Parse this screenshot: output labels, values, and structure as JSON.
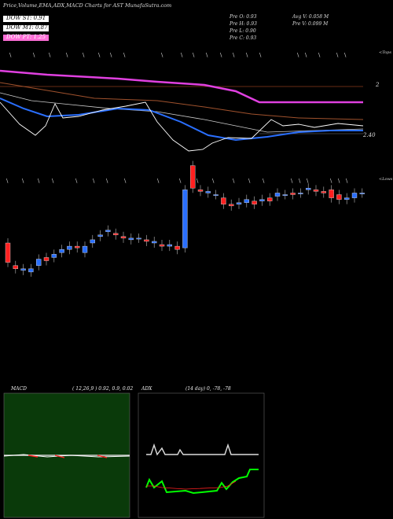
{
  "header": {
    "title": "Price,Volume,EMA,ADX,MACD Charts for AST MunafaSutra.com",
    "legend": [
      {
        "label": "DOW ST: 0.91",
        "color": "#ff6fd8"
      },
      {
        "label": "DOW MT: 0.87",
        "color": "#ff6fd8"
      },
      {
        "label": "DOW PT: 1.25",
        "color": "#ff6fd8"
      }
    ],
    "stats": {
      "prev_open": "Pre   O: 0.93",
      "prev_high": "Pre   H: 0.93",
      "prev_low": "Pre   L: 0.90",
      "prev_close": "Pre   C: 0.93",
      "avg_volume": "Avg V: 0.058 M",
      "prev_volume": "Pre   V: 0.099 M"
    }
  },
  "price_panel": {
    "label_top": "<Tops",
    "label_bottom": "<Lows",
    "axis_label_2": "2",
    "axis_label_240": "2.40"
  },
  "macd_panel": {
    "label": "MACD",
    "params": "( 12,26,9 ) 0.92, 0.9, 0.02"
  },
  "adx_panel": {
    "label": "ADX",
    "params": "(14  day) 0, -78, -78"
  },
  "colors": {
    "ema_magenta": "#e040e0",
    "ema_brown": "#a0522d",
    "ema_blue": "#2a6fff",
    "candle_red": "#ff2020",
    "candle_blue": "#2a6fff",
    "macd_bg": "#0a3a0a",
    "adx_green": "#00ff00"
  },
  "chart_data": {
    "type": "candlestick",
    "series": [
      {
        "name": "DOW ST",
        "values": [
          0.91
        ]
      },
      {
        "name": "DOW MT",
        "values": [
          0.87
        ]
      },
      {
        "name": "DOW PT",
        "values": [
          1.25
        ]
      }
    ],
    "last_session": {
      "open": 0.93,
      "high": 0.93,
      "low": 0.9,
      "close": 0.93,
      "volume_m": 0.099,
      "avg_volume_m": 0.058
    },
    "macd": {
      "fast": 12,
      "slow": 26,
      "signal": 9,
      "macd": 0.92,
      "signal_value": 0.9,
      "histogram": 0.02
    },
    "adx": {
      "period": 14,
      "adx": 0,
      "plus_di": -78,
      "minus_di": -78
    },
    "candles": [
      {
        "o": 0.62,
        "c": 0.5,
        "dir": "down"
      },
      {
        "o": 0.48,
        "c": 0.46,
        "dir": "down"
      },
      {
        "o": 0.45,
        "c": 0.46,
        "dir": "up"
      },
      {
        "o": 0.44,
        "c": 0.46,
        "dir": "up"
      },
      {
        "o": 0.48,
        "c": 0.52,
        "dir": "up"
      },
      {
        "o": 0.53,
        "c": 0.51,
        "dir": "down"
      },
      {
        "o": 0.53,
        "c": 0.55,
        "dir": "up"
      },
      {
        "o": 0.56,
        "c": 0.58,
        "dir": "up"
      },
      {
        "o": 0.58,
        "c": 0.6,
        "dir": "up"
      },
      {
        "o": 0.6,
        "c": 0.59,
        "dir": "down"
      },
      {
        "o": 0.56,
        "c": 0.6,
        "dir": "up"
      },
      {
        "o": 0.62,
        "c": 0.64,
        "dir": "up"
      },
      {
        "o": 0.66,
        "c": 0.67,
        "dir": "up"
      },
      {
        "o": 0.69,
        "c": 0.7,
        "dir": "up"
      },
      {
        "o": 0.68,
        "c": 0.67,
        "dir": "down"
      },
      {
        "o": 0.66,
        "c": 0.65,
        "dir": "down"
      },
      {
        "o": 0.64,
        "c": 0.65,
        "dir": "up"
      },
      {
        "o": 0.65,
        "c": 0.65,
        "dir": "up"
      },
      {
        "o": 0.64,
        "c": 0.63,
        "dir": "down"
      },
      {
        "o": 0.62,
        "c": 0.63,
        "dir": "up"
      },
      {
        "o": 0.61,
        "c": 0.6,
        "dir": "down"
      },
      {
        "o": 0.6,
        "c": 0.61,
        "dir": "up"
      },
      {
        "o": 0.6,
        "c": 0.58,
        "dir": "down"
      },
      {
        "o": 0.59,
        "c": 0.95,
        "dir": "up"
      },
      {
        "o": 1.1,
        "c": 0.96,
        "dir": "down"
      },
      {
        "o": 0.95,
        "c": 0.94,
        "dir": "down"
      },
      {
        "o": 0.93,
        "c": 0.94,
        "dir": "up"
      },
      {
        "o": 0.92,
        "c": 0.92,
        "dir": "up"
      },
      {
        "o": 0.9,
        "c": 0.86,
        "dir": "down"
      },
      {
        "o": 0.86,
        "c": 0.85,
        "dir": "down"
      },
      {
        "o": 0.86,
        "c": 0.87,
        "dir": "up"
      },
      {
        "o": 0.87,
        "c": 0.89,
        "dir": "up"
      },
      {
        "o": 0.88,
        "c": 0.86,
        "dir": "down"
      },
      {
        "o": 0.88,
        "c": 0.89,
        "dir": "up"
      },
      {
        "o": 0.9,
        "c": 0.88,
        "dir": "down"
      },
      {
        "o": 0.91,
        "c": 0.93,
        "dir": "up"
      },
      {
        "o": 0.92,
        "c": 0.92,
        "dir": "up"
      },
      {
        "o": 0.93,
        "c": 0.92,
        "dir": "down"
      },
      {
        "o": 0.93,
        "c": 0.93,
        "dir": "up"
      },
      {
        "o": 0.95,
        "c": 0.96,
        "dir": "up"
      },
      {
        "o": 0.95,
        "c": 0.94,
        "dir": "down"
      },
      {
        "o": 0.94,
        "c": 0.93,
        "dir": "down"
      },
      {
        "o": 0.95,
        "c": 0.9,
        "dir": "down"
      },
      {
        "o": 0.92,
        "c": 0.89,
        "dir": "down"
      },
      {
        "o": 0.89,
        "c": 0.9,
        "dir": "up"
      },
      {
        "o": 0.9,
        "c": 0.93,
        "dir": "up"
      },
      {
        "o": 0.93,
        "c": 0.93,
        "dir": "up"
      }
    ]
  }
}
